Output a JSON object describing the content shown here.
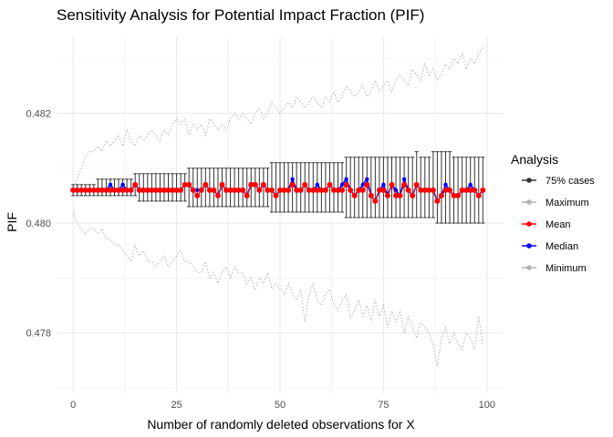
{
  "chart_data": {
    "type": "line",
    "title": "Sensitivity Analysis for Potential Impact Fraction (PIF)",
    "xlabel": "Number of randomly deleted observations for X",
    "ylabel": "PIF",
    "xlim": [
      -4,
      104
    ],
    "ylim": [
      0.4769,
      0.4834
    ],
    "x_ticks": [
      0,
      25,
      50,
      75,
      100
    ],
    "y_ticks": [
      0.478,
      0.48,
      0.482
    ],
    "y_tick_labels": [
      "0.478",
      "0.480",
      "0.482"
    ],
    "grid": true,
    "legend": {
      "title": "Analysis",
      "position": "right",
      "entries": [
        "75% cases",
        "Maximum",
        "Mean",
        "Median",
        "Minimum"
      ]
    },
    "colors": {
      "75% cases": "#333333",
      "Maximum": "#b3b3b3",
      "Mean": "#ff0000",
      "Median": "#0000ff",
      "Minimum": "#b3b3b3",
      "grid": "#ebebeb"
    },
    "x": [
      0,
      1,
      2,
      3,
      4,
      5,
      6,
      7,
      8,
      9,
      10,
      11,
      12,
      13,
      14,
      15,
      16,
      17,
      18,
      19,
      20,
      21,
      22,
      23,
      24,
      25,
      26,
      27,
      28,
      29,
      30,
      31,
      32,
      33,
      34,
      35,
      36,
      37,
      38,
      39,
      40,
      41,
      42,
      43,
      44,
      45,
      46,
      47,
      48,
      49,
      50,
      51,
      52,
      53,
      54,
      55,
      56,
      57,
      58,
      59,
      60,
      61,
      62,
      63,
      64,
      65,
      66,
      67,
      68,
      69,
      70,
      71,
      72,
      73,
      74,
      75,
      76,
      77,
      78,
      79,
      80,
      81,
      82,
      83,
      84,
      85,
      86,
      87,
      88,
      89,
      90,
      91,
      92,
      93,
      94,
      95,
      96,
      97,
      98,
      99
    ],
    "series": [
      {
        "name": "Maximum",
        "values": [
          0.4806,
          0.4808,
          0.481,
          0.4812,
          0.4813,
          0.4813,
          0.4814,
          0.4813,
          0.4815,
          0.4814,
          0.4815,
          0.4816,
          0.4814,
          0.4817,
          0.4815,
          0.4814,
          0.4816,
          0.4815,
          0.4816,
          0.4817,
          0.4816,
          0.4815,
          0.4817,
          0.4816,
          0.4818,
          0.4819,
          0.4818,
          0.4819,
          0.4816,
          0.4818,
          0.4817,
          0.4818,
          0.4816,
          0.4819,
          0.4818,
          0.4817,
          0.4818,
          0.4817,
          0.4819,
          0.482,
          0.4819,
          0.482,
          0.4819,
          0.4818,
          0.482,
          0.4821,
          0.4819,
          0.482,
          0.4822,
          0.4821,
          0.482,
          0.4821,
          0.4822,
          0.4821,
          0.4823,
          0.4822,
          0.4821,
          0.4822,
          0.4823,
          0.4822,
          0.4821,
          0.4823,
          0.4822,
          0.4824,
          0.4822,
          0.4823,
          0.4825,
          0.4824,
          0.4823,
          0.4824,
          0.4825,
          0.4823,
          0.4824,
          0.4826,
          0.4824,
          0.4825,
          0.4826,
          0.4824,
          0.4826,
          0.4827,
          0.4826,
          0.4825,
          0.4828,
          0.4827,
          0.4826,
          0.4829,
          0.4827,
          0.4828,
          0.4826,
          0.4827,
          0.4829,
          0.4828,
          0.483,
          0.4829,
          0.4831,
          0.4828,
          0.483,
          0.4829,
          0.4831,
          0.4832
        ]
      },
      {
        "name": "Minimum",
        "values": [
          0.4802,
          0.48,
          0.4799,
          0.4798,
          0.4799,
          0.4799,
          0.4798,
          0.4799,
          0.4797,
          0.4797,
          0.4796,
          0.4796,
          0.4795,
          0.4794,
          0.4793,
          0.4796,
          0.4794,
          0.4795,
          0.4793,
          0.4793,
          0.4792,
          0.4793,
          0.4794,
          0.4792,
          0.4793,
          0.4794,
          0.4795,
          0.4793,
          0.4793,
          0.4792,
          0.4791,
          0.4791,
          0.4793,
          0.479,
          0.4791,
          0.4789,
          0.4791,
          0.4792,
          0.479,
          0.4792,
          0.4791,
          0.4791,
          0.4789,
          0.479,
          0.4788,
          0.479,
          0.4789,
          0.4791,
          0.4788,
          0.4789,
          0.4788,
          0.4787,
          0.4789,
          0.4787,
          0.4786,
          0.4788,
          0.4782,
          0.4787,
          0.4789,
          0.4786,
          0.4785,
          0.4787,
          0.4788,
          0.4785,
          0.4784,
          0.4786,
          0.4787,
          0.4783,
          0.4784,
          0.4786,
          0.4783,
          0.4785,
          0.4782,
          0.4786,
          0.4783,
          0.4785,
          0.4781,
          0.4784,
          0.4782,
          0.4784,
          0.478,
          0.4783,
          0.4781,
          0.4779,
          0.4782,
          0.4781,
          0.478,
          0.4778,
          0.4774,
          0.4779,
          0.4781,
          0.4778,
          0.478,
          0.4778,
          0.4777,
          0.478,
          0.4779,
          0.4777,
          0.4783,
          0.4778
        ]
      },
      {
        "name": "Mean",
        "values": [
          0.4806,
          0.4806,
          0.4806,
          0.4806,
          0.4806,
          0.4806,
          0.4806,
          0.4806,
          0.4806,
          0.4806,
          0.4806,
          0.4806,
          0.4806,
          0.4806,
          0.4806,
          0.4807,
          0.4806,
          0.4806,
          0.4806,
          0.4806,
          0.4806,
          0.4806,
          0.4806,
          0.4806,
          0.4806,
          0.4806,
          0.4806,
          0.4807,
          0.4807,
          0.4806,
          0.4805,
          0.4806,
          0.4807,
          0.4806,
          0.4806,
          0.4805,
          0.4807,
          0.4806,
          0.4806,
          0.4806,
          0.4806,
          0.4806,
          0.4805,
          0.4807,
          0.4807,
          0.4806,
          0.4807,
          0.4806,
          0.4806,
          0.4805,
          0.4806,
          0.4806,
          0.4806,
          0.4807,
          0.4806,
          0.4806,
          0.4807,
          0.4806,
          0.4806,
          0.4806,
          0.4806,
          0.4806,
          0.4807,
          0.4806,
          0.4806,
          0.4806,
          0.4807,
          0.4806,
          0.4805,
          0.4806,
          0.4806,
          0.4807,
          0.4805,
          0.4804,
          0.4806,
          0.4806,
          0.4805,
          0.4807,
          0.4805,
          0.4805,
          0.4807,
          0.4806,
          0.4805,
          0.4807,
          0.4806,
          0.4806,
          0.4806,
          0.4806,
          0.4804,
          0.4805,
          0.4806,
          0.4806,
          0.4805,
          0.4805,
          0.4806,
          0.4806,
          0.4806,
          0.4806,
          0.4805,
          0.4806
        ]
      },
      {
        "name": "Median",
        "values": [
          0.4806,
          0.4806,
          0.4806,
          0.4806,
          0.4806,
          0.4806,
          0.4806,
          0.4806,
          0.4806,
          0.4807,
          0.4806,
          0.4806,
          0.4807,
          0.4806,
          0.4806,
          0.4807,
          0.4806,
          0.4806,
          0.4806,
          0.4806,
          0.4806,
          0.4806,
          0.4806,
          0.4806,
          0.4806,
          0.4806,
          0.4806,
          0.4807,
          0.4807,
          0.4806,
          0.4806,
          0.4806,
          0.4807,
          0.4806,
          0.4806,
          0.4805,
          0.4807,
          0.4806,
          0.4806,
          0.4806,
          0.4806,
          0.4806,
          0.4805,
          0.4807,
          0.4807,
          0.4806,
          0.4807,
          0.4806,
          0.4806,
          0.4805,
          0.4806,
          0.4806,
          0.4806,
          0.4808,
          0.4806,
          0.4806,
          0.4807,
          0.4806,
          0.4806,
          0.4807,
          0.4806,
          0.4806,
          0.4807,
          0.4806,
          0.4806,
          0.4807,
          0.4808,
          0.4806,
          0.4805,
          0.4806,
          0.4807,
          0.4808,
          0.4805,
          0.4804,
          0.4806,
          0.4807,
          0.4805,
          0.4807,
          0.4806,
          0.4805,
          0.4808,
          0.4806,
          0.4805,
          0.4807,
          0.4806,
          0.4806,
          0.4806,
          0.4806,
          0.4804,
          0.4805,
          0.4807,
          0.4806,
          0.4805,
          0.4805,
          0.4806,
          0.4806,
          0.4807,
          0.4806,
          0.4805,
          0.4806
        ]
      },
      {
        "name": "75% cases",
        "lower": [
          0.4805,
          0.4805,
          0.4805,
          0.4805,
          0.4805,
          0.4805,
          0.4805,
          0.4805,
          0.4805,
          0.4805,
          0.4805,
          0.4805,
          0.4805,
          0.4805,
          0.4805,
          0.4805,
          0.4804,
          0.4804,
          0.4804,
          0.4804,
          0.4804,
          0.4804,
          0.4804,
          0.4804,
          0.4804,
          0.4804,
          0.4804,
          0.4804,
          0.4803,
          0.4803,
          0.4803,
          0.4803,
          0.4803,
          0.4803,
          0.4803,
          0.4803,
          0.4803,
          0.4803,
          0.4803,
          0.4803,
          0.4803,
          0.4803,
          0.4803,
          0.4803,
          0.4803,
          0.4803,
          0.4803,
          0.4803,
          0.4802,
          0.4802,
          0.4802,
          0.4802,
          0.4802,
          0.4802,
          0.4802,
          0.4802,
          0.4802,
          0.4802,
          0.4802,
          0.4802,
          0.4802,
          0.4802,
          0.4802,
          0.4802,
          0.4802,
          0.4802,
          0.4801,
          0.4801,
          0.4801,
          0.4801,
          0.4801,
          0.4801,
          0.4801,
          0.4801,
          0.4801,
          0.4801,
          0.4801,
          0.4801,
          0.4801,
          0.4801,
          0.4801,
          0.4801,
          0.4801,
          0.4801,
          0.4801,
          0.4801,
          0.4801,
          0.4801,
          0.48,
          0.48,
          0.48,
          0.48,
          0.48,
          0.48,
          0.48,
          0.48,
          0.48,
          0.48,
          0.48,
          0.48
        ],
        "upper": [
          0.4807,
          0.4807,
          0.4807,
          0.4807,
          0.4807,
          0.4807,
          0.4808,
          0.4808,
          0.4808,
          0.4808,
          0.4808,
          0.4808,
          0.4808,
          0.4808,
          0.4808,
          0.4809,
          0.4809,
          0.4809,
          0.4809,
          0.4809,
          0.4809,
          0.4809,
          0.4809,
          0.4809,
          0.4809,
          0.4809,
          0.4809,
          0.4809,
          0.481,
          0.481,
          0.481,
          0.481,
          0.481,
          0.481,
          0.481,
          0.481,
          0.481,
          0.481,
          0.481,
          0.481,
          0.481,
          0.481,
          0.481,
          0.481,
          0.481,
          0.481,
          0.481,
          0.481,
          0.4811,
          0.4811,
          0.4811,
          0.4811,
          0.4811,
          0.4811,
          0.4811,
          0.4811,
          0.4811,
          0.4811,
          0.4811,
          0.4811,
          0.4811,
          0.4811,
          0.4811,
          0.4811,
          0.4811,
          0.4811,
          0.4812,
          0.4812,
          0.4812,
          0.4812,
          0.4812,
          0.4812,
          0.4812,
          0.4812,
          0.4812,
          0.4812,
          0.4812,
          0.4812,
          0.4812,
          0.4812,
          0.4812,
          0.4812,
          0.4812,
          0.4813,
          0.4812,
          0.4812,
          0.4812,
          0.4813,
          0.4813,
          0.4813,
          0.4813,
          0.4813,
          0.4812,
          0.4812,
          0.4812,
          0.4812,
          0.4812,
          0.4812,
          0.4812,
          0.4812
        ]
      }
    ]
  }
}
